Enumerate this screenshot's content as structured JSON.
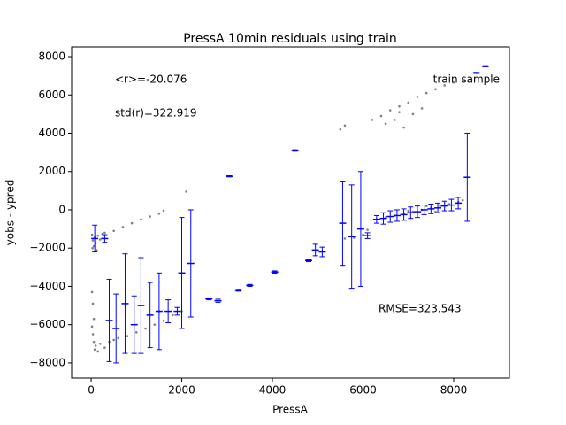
{
  "chart_data": {
    "type": "scatter",
    "title": "PressA 10min residuals using train",
    "x_label": "PressA",
    "y_label": "yobs - ypred",
    "annotations": [
      "<r>=-20.076",
      "std(r)=322.919",
      "train sample",
      "RMSE=323.543"
    ],
    "xlim": [
      -430,
      9230
    ],
    "ylim": [
      -8790,
      8510
    ],
    "xticks": [
      0,
      2000,
      4000,
      6000,
      8000
    ],
    "yticks": [
      {
        "value": -8000,
        "label": "−8000"
      },
      {
        "value": -6000,
        "label": "−6000"
      },
      {
        "value": -4000,
        "label": "−4000"
      },
      {
        "value": -2000,
        "label": "−2000"
      },
      0,
      2000,
      4000,
      6000,
      8000
    ],
    "points": {
      "color": "#808080",
      "x": [
        20,
        40,
        60,
        80,
        100,
        150,
        200,
        250,
        30,
        120,
        20,
        40,
        60,
        80,
        100,
        150,
        200,
        300,
        400,
        500,
        600,
        800,
        1000,
        1200,
        1400,
        1600,
        1800,
        2000,
        60,
        40,
        20,
        1500,
        300,
        500,
        700,
        900,
        1100,
        1300,
        1500,
        1600,
        2100,
        5600,
        5800,
        6000,
        6100,
        5500,
        5600,
        6300,
        6500,
        6700,
        6900,
        7100,
        7300,
        7500,
        7700,
        7900,
        8100,
        8200,
        7000,
        7400,
        7600,
        6200,
        6400,
        6600,
        6800,
        7000,
        7200,
        7400,
        7600,
        7800,
        8000,
        8200,
        6500,
        6700,
        6900,
        7100,
        7300,
        6800
      ],
      "y": [
        -1300,
        -1600,
        -1900,
        -1450,
        -1750,
        -1350,
        -1550,
        -1250,
        -2000,
        -2100,
        -6100,
        -6500,
        -6900,
        -7300,
        -7100,
        -7400,
        -7000,
        -7200,
        -6900,
        -6800,
        -6700,
        -6600,
        -6400,
        -6200,
        -6000,
        -5800,
        -5500,
        -5300,
        -5700,
        -4900,
        -4300,
        -5300,
        -1200,
        -1100,
        -900,
        -700,
        -500,
        -350,
        -200,
        -50,
        950,
        -1500,
        -1450,
        -1300,
        -1050,
        4200,
        4400,
        -500,
        -400,
        -300,
        -200,
        -100,
        0,
        100,
        200,
        300,
        400,
        500,
        -50,
        200,
        -100,
        4700,
        4900,
        5200,
        5400,
        5600,
        5900,
        6100,
        6300,
        6500,
        6650,
        6750,
        4500,
        4700,
        4300,
        5000,
        5300,
        5100
      ]
    },
    "errorbars": {
      "color": "#0000ff",
      "x": [
        80,
        300,
        400,
        550,
        750,
        950,
        1100,
        1300,
        1500,
        1700,
        1900,
        2000,
        2200,
        2600,
        2800,
        3050,
        3250,
        3500,
        4050,
        4500,
        4800,
        4950,
        5100,
        5550,
        5750,
        5950,
        6100,
        6300,
        6450,
        6600,
        6750,
        6900,
        7050,
        7200,
        7350,
        7500,
        7650,
        7800,
        7950,
        8100,
        8300,
        8500,
        8700
      ],
      "y": [
        -1500,
        -1500,
        -5780,
        -6200,
        -4900,
        -6000,
        -5000,
        -5500,
        -5300,
        -5300,
        -5300,
        -3300,
        -2800,
        -4650,
        -4750,
        1750,
        -4200,
        -3950,
        -3250,
        3100,
        -2650,
        -2100,
        -2200,
        -700,
        -1400,
        -1000,
        -1350,
        -500,
        -450,
        -350,
        -300,
        -250,
        -150,
        -100,
        0,
        50,
        100,
        200,
        250,
        350,
        1700,
        7150,
        7500
      ],
      "err": [
        700,
        200,
        2150,
        1800,
        2600,
        1500,
        2500,
        1700,
        2000,
        600,
        200,
        2900,
        2800,
        50,
        80,
        30,
        50,
        50,
        60,
        40,
        60,
        300,
        250,
        2200,
        2700,
        3000,
        150,
        200,
        300,
        300,
        300,
        300,
        300,
        300,
        250,
        250,
        250,
        250,
        300,
        300,
        2300,
        30,
        30
      ]
    }
  }
}
